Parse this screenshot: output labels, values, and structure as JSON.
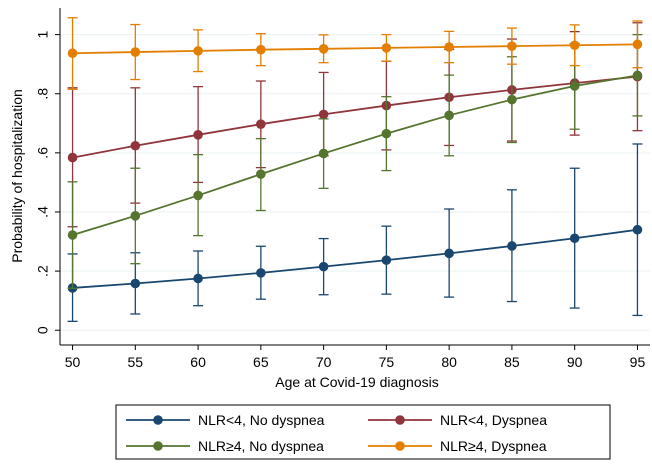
{
  "chart_data": {
    "type": "line",
    "xlabel": "Age at Covid-19 diagnosis",
    "ylabel": "Probability of hospitalization",
    "x": [
      50,
      55,
      60,
      65,
      70,
      75,
      80,
      85,
      90,
      95
    ],
    "xlim": [
      49,
      96
    ],
    "ylim": [
      -0.05,
      1.09
    ],
    "xticks": [
      "50",
      "55",
      "60",
      "65",
      "70",
      "75",
      "80",
      "85",
      "90",
      "95"
    ],
    "yticks": [
      {
        "value": 0,
        "label": "0"
      },
      {
        "value": 0.2,
        "label": ".2"
      },
      {
        "value": 0.4,
        "label": ".4"
      },
      {
        "value": 0.6,
        "label": ".6"
      },
      {
        "value": 0.8,
        "label": ".8"
      },
      {
        "value": 1,
        "label": "1"
      }
    ],
    "grid": "horizontal",
    "legend_position": "bottom",
    "series": [
      {
        "name": "NLR<4, No dyspnea",
        "color": "#1a476f",
        "values": [
          0.143,
          0.158,
          0.175,
          0.194,
          0.215,
          0.237,
          0.26,
          0.285,
          0.311,
          0.34
        ],
        "lower": [
          0.03,
          0.055,
          0.083,
          0.105,
          0.12,
          0.122,
          0.112,
          0.097,
          0.075,
          0.05
        ],
        "upper": [
          0.258,
          0.262,
          0.268,
          0.284,
          0.31,
          0.352,
          0.41,
          0.475,
          0.548,
          0.63
        ]
      },
      {
        "name": "NLR<4, Dyspnea",
        "color": "#90353b",
        "values": [
          0.584,
          0.624,
          0.661,
          0.697,
          0.73,
          0.76,
          0.788,
          0.813,
          0.836,
          0.858
        ],
        "lower": [
          0.35,
          0.43,
          0.5,
          0.55,
          0.59,
          0.61,
          0.625,
          0.64,
          0.66,
          0.675
        ],
        "upper": [
          0.82,
          0.82,
          0.824,
          0.843,
          0.872,
          0.91,
          0.95,
          0.985,
          1.01,
          1.04
        ]
      },
      {
        "name": "NLR≥4, No dyspnea",
        "color": "#55752f",
        "values": [
          0.322,
          0.387,
          0.456,
          0.528,
          0.598,
          0.665,
          0.727,
          0.78,
          0.826,
          0.862
        ],
        "lower": [
          0.142,
          0.225,
          0.32,
          0.405,
          0.48,
          0.54,
          0.59,
          0.635,
          0.68,
          0.725
        ],
        "upper": [
          0.502,
          0.548,
          0.594,
          0.648,
          0.715,
          0.79,
          0.863,
          0.925,
          0.97,
          1.0
        ]
      },
      {
        "name": "NLR≥4, Dyspnea",
        "color": "#e37e00",
        "values": [
          0.937,
          0.941,
          0.945,
          0.949,
          0.952,
          0.955,
          0.958,
          0.961,
          0.964,
          0.967
        ],
        "lower": [
          0.815,
          0.848,
          0.875,
          0.895,
          0.905,
          0.91,
          0.905,
          0.9,
          0.895,
          0.888
        ],
        "upper": [
          1.057,
          1.034,
          1.016,
          1.003,
          0.999,
          1.0,
          1.011,
          1.022,
          1.033,
          1.046
        ]
      }
    ]
  }
}
